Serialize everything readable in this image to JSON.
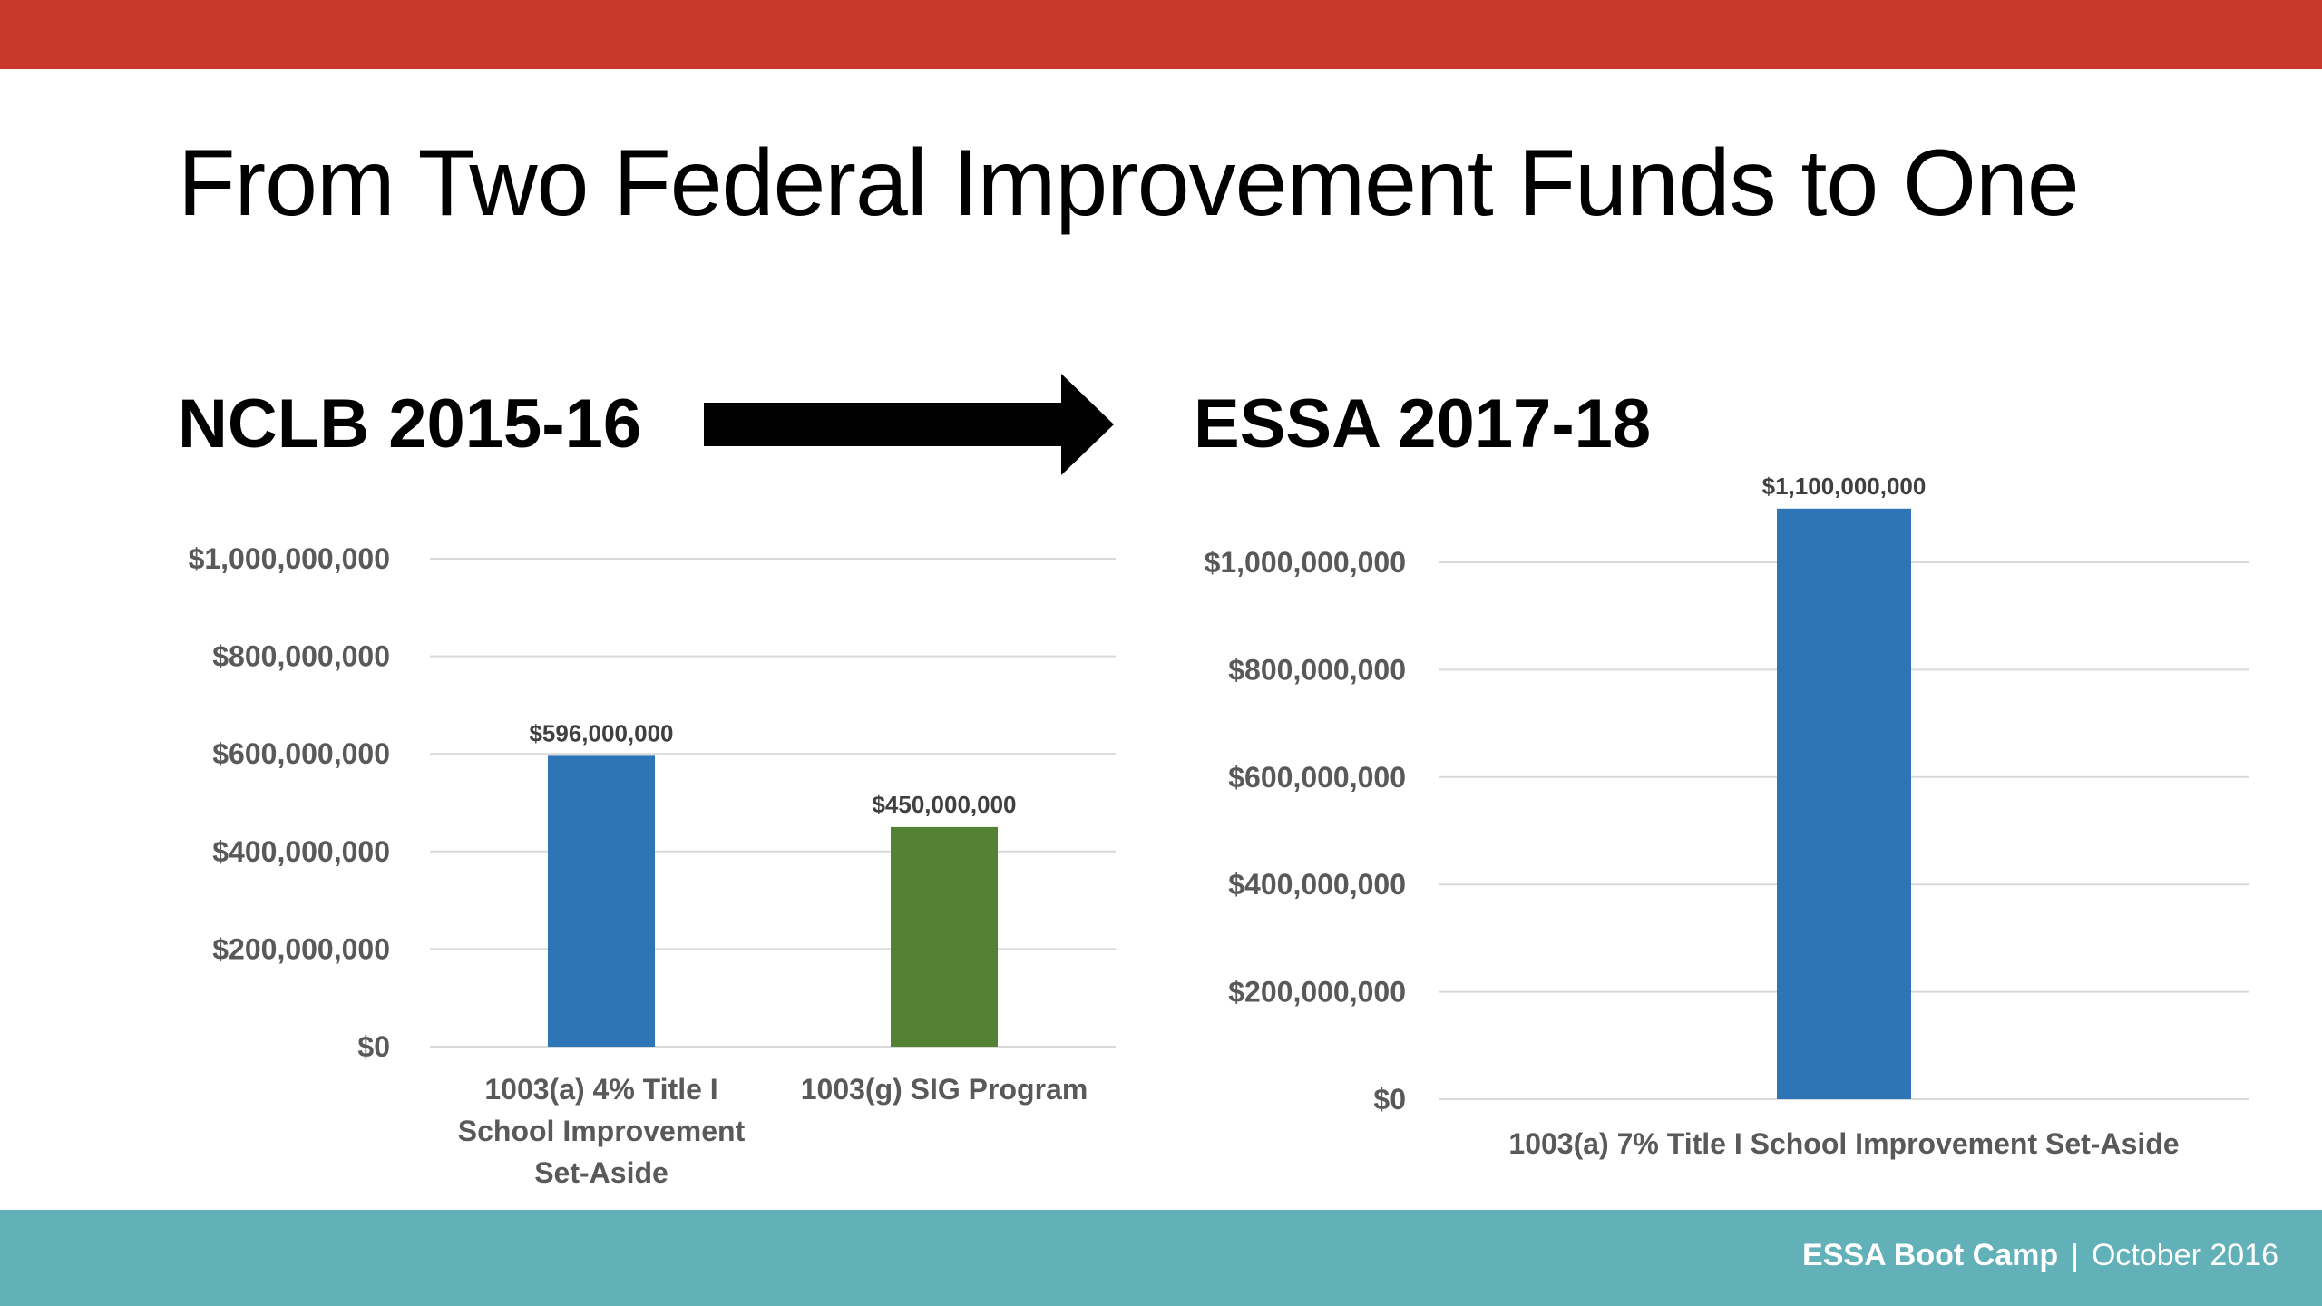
{
  "slide": {
    "title": "From Two Federal Improvement Funds to One",
    "colors": {
      "top_bar": "#C8392C",
      "footer_bar": "#62B0B8",
      "arrow": "#000000"
    },
    "left_heading": "NCLB 2015-16",
    "right_heading": "ESSA 2017-18",
    "arrow_icon": "right-arrow-icon"
  },
  "footer": {
    "event": "ESSA Boot Camp",
    "separator": "|",
    "date": "October 2016"
  },
  "chart_data": [
    {
      "type": "bar",
      "categories": [
        "1003(a) 4% Title I School Improvement Set-Aside",
        "1003(g) SIG Program"
      ],
      "category_lines": [
        [
          "1003(a) 4% Title I",
          "School Improvement",
          "Set-Aside"
        ],
        [
          "1003(g) SIG Program"
        ]
      ],
      "values": [
        596000000,
        450000000
      ],
      "data_labels": [
        "$596,000,000",
        "$450,000,000"
      ],
      "bar_colors": [
        "#2E75B6",
        "#548235"
      ],
      "ylim": [
        0,
        1000000000
      ],
      "yticks": [
        0,
        200000000,
        400000000,
        600000000,
        800000000,
        1000000000
      ],
      "ytick_labels": [
        "$0",
        "$200,000,000",
        "$400,000,000",
        "$600,000,000",
        "$800,000,000",
        "$1,000,000,000"
      ],
      "grid": true,
      "legend": "none"
    },
    {
      "type": "bar",
      "categories": [
        "1003(a) 7% Title I School Improvement Set-Aside"
      ],
      "category_lines": [
        [
          "1003(a) 7% Title I School Improvement Set-Aside"
        ]
      ],
      "values": [
        1100000000
      ],
      "data_labels": [
        "$1,100,000,000"
      ],
      "bar_colors": [
        "#2E75B6"
      ],
      "ylim": [
        0,
        1000000000
      ],
      "yticks": [
        0,
        200000000,
        400000000,
        600000000,
        800000000,
        1000000000
      ],
      "ytick_labels": [
        "$0",
        "$200,000,000",
        "$400,000,000",
        "$600,000,000",
        "$800,000,000",
        "$1,000,000,000"
      ],
      "grid": true,
      "legend": "none"
    }
  ]
}
